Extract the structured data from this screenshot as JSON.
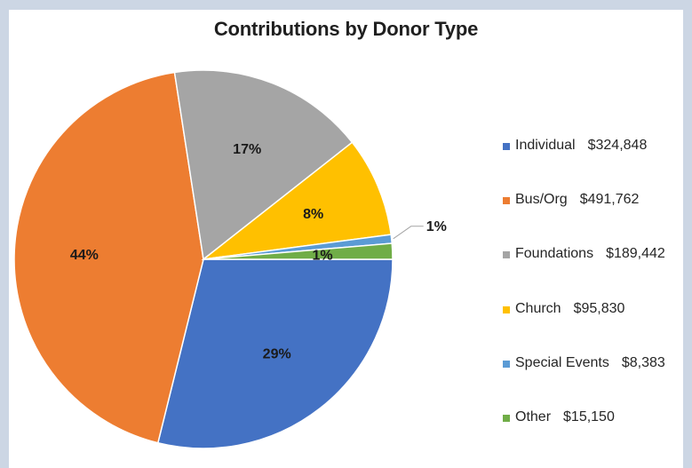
{
  "chart_data": {
    "type": "pie",
    "title": "Contributions by Donor Type",
    "series": [
      {
        "name": "Individual",
        "amount_label": "$324,848",
        "value": 324848,
        "percent_label": "29%",
        "color": "#4472c4"
      },
      {
        "name": "Bus/Org",
        "amount_label": "$491,762",
        "value": 491762,
        "percent_label": "44%",
        "color": "#ed7d31"
      },
      {
        "name": "Foundations",
        "amount_label": "$189,442",
        "value": 189442,
        "percent_label": "17%",
        "color": "#a5a5a5"
      },
      {
        "name": "Church",
        "amount_label": "$95,830",
        "value": 95830,
        "percent_label": "8%",
        "color": "#ffc000"
      },
      {
        "name": "Special Events",
        "amount_label": "$8,383",
        "value": 8383,
        "percent_label": "1%",
        "color": "#5b9bd5"
      },
      {
        "name": "Other",
        "amount_label": "$15,150",
        "value": 15150,
        "percent_label": "1%",
        "color": "#70ad47"
      }
    ],
    "legend_position": "right"
  },
  "colors": {
    "page_background": "#ccd6e4",
    "panel_background": "#ffffff",
    "slice_border": "#ffffff"
  }
}
